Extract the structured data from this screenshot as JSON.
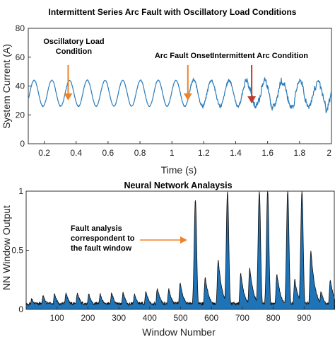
{
  "chart_data": [
    {
      "type": "line",
      "title": "Intermittent Series Arc Fault with Oscillatory Load Conditions",
      "xlabel": "Time (s)",
      "ylabel": "System Current (A)",
      "xlim": [
        0.1,
        2.0
      ],
      "ylim": [
        0,
        80
      ],
      "xticks": [
        "0.2",
        "0.4",
        "0.6",
        "0.8",
        "1",
        "1.2",
        "1.4",
        "1.6",
        "1.8",
        "2"
      ],
      "yticks": [
        "0",
        "20",
        "40",
        "60",
        "80"
      ],
      "grid": false,
      "series_color": "#2b7bb9",
      "signal": {
        "baseline_current": 35,
        "oscillation_amplitude": 9,
        "oscillation_period": 0.1111,
        "arc_fault_onset_time": 1.1,
        "intermittent_arc_start_time": 1.45
      },
      "annotations": [
        {
          "lines": [
            "Oscillatory Load",
            "Condition"
          ],
          "x": 0.35,
          "y": 30,
          "color": "#f0832a"
        },
        {
          "lines": [
            "Arc Fault Onset"
          ],
          "x": 1.1,
          "y": 30,
          "color": "#f0832a"
        },
        {
          "lines": [
            "Intermittent Arc Condition"
          ],
          "x": 1.5,
          "y": 28,
          "color": "#c0392b"
        }
      ]
    },
    {
      "type": "area",
      "title": "Neural Network Analaysis",
      "xlabel": "Window Number",
      "ylabel": "NN Window Output",
      "xlim": [
        0,
        1000
      ],
      "ylim": [
        0,
        1
      ],
      "xticks": [
        "100",
        "200",
        "300",
        "400",
        "500",
        "600",
        "700",
        "800",
        "900"
      ],
      "yticks": [
        "0",
        "0.5",
        "1"
      ],
      "grid": false,
      "fill_color": "#1f73b7",
      "peaks": [
        {
          "x": 18,
          "y": 0.09
        },
        {
          "x": 55,
          "y": 0.12
        },
        {
          "x": 92,
          "y": 0.13
        },
        {
          "x": 129,
          "y": 0.14
        },
        {
          "x": 166,
          "y": 0.14
        },
        {
          "x": 203,
          "y": 0.13
        },
        {
          "x": 240,
          "y": 0.13
        },
        {
          "x": 277,
          "y": 0.14
        },
        {
          "x": 314,
          "y": 0.14
        },
        {
          "x": 351,
          "y": 0.13
        },
        {
          "x": 388,
          "y": 0.15
        },
        {
          "x": 425,
          "y": 0.18
        },
        {
          "x": 462,
          "y": 0.17
        },
        {
          "x": 499,
          "y": 0.22
        },
        {
          "x": 548,
          "y": 0.93
        },
        {
          "x": 580,
          "y": 0.27
        },
        {
          "x": 622,
          "y": 0.42
        },
        {
          "x": 652,
          "y": 1.0
        },
        {
          "x": 695,
          "y": 0.3
        },
        {
          "x": 724,
          "y": 0.35
        },
        {
          "x": 755,
          "y": 1.0
        },
        {
          "x": 782,
          "y": 1.0
        },
        {
          "x": 812,
          "y": 0.3
        },
        {
          "x": 847,
          "y": 1.0
        },
        {
          "x": 870,
          "y": 0.25
        },
        {
          "x": 893,
          "y": 1.0
        },
        {
          "x": 922,
          "y": 0.5
        },
        {
          "x": 955,
          "y": 0.15
        },
        {
          "x": 985,
          "y": 0.25
        }
      ],
      "annotations": [
        {
          "lines": [
            "Fault analysis",
            "correspondent to",
            "the fault window"
          ],
          "x": 530,
          "y": 0.6,
          "color": "#f0832a"
        }
      ]
    }
  ]
}
